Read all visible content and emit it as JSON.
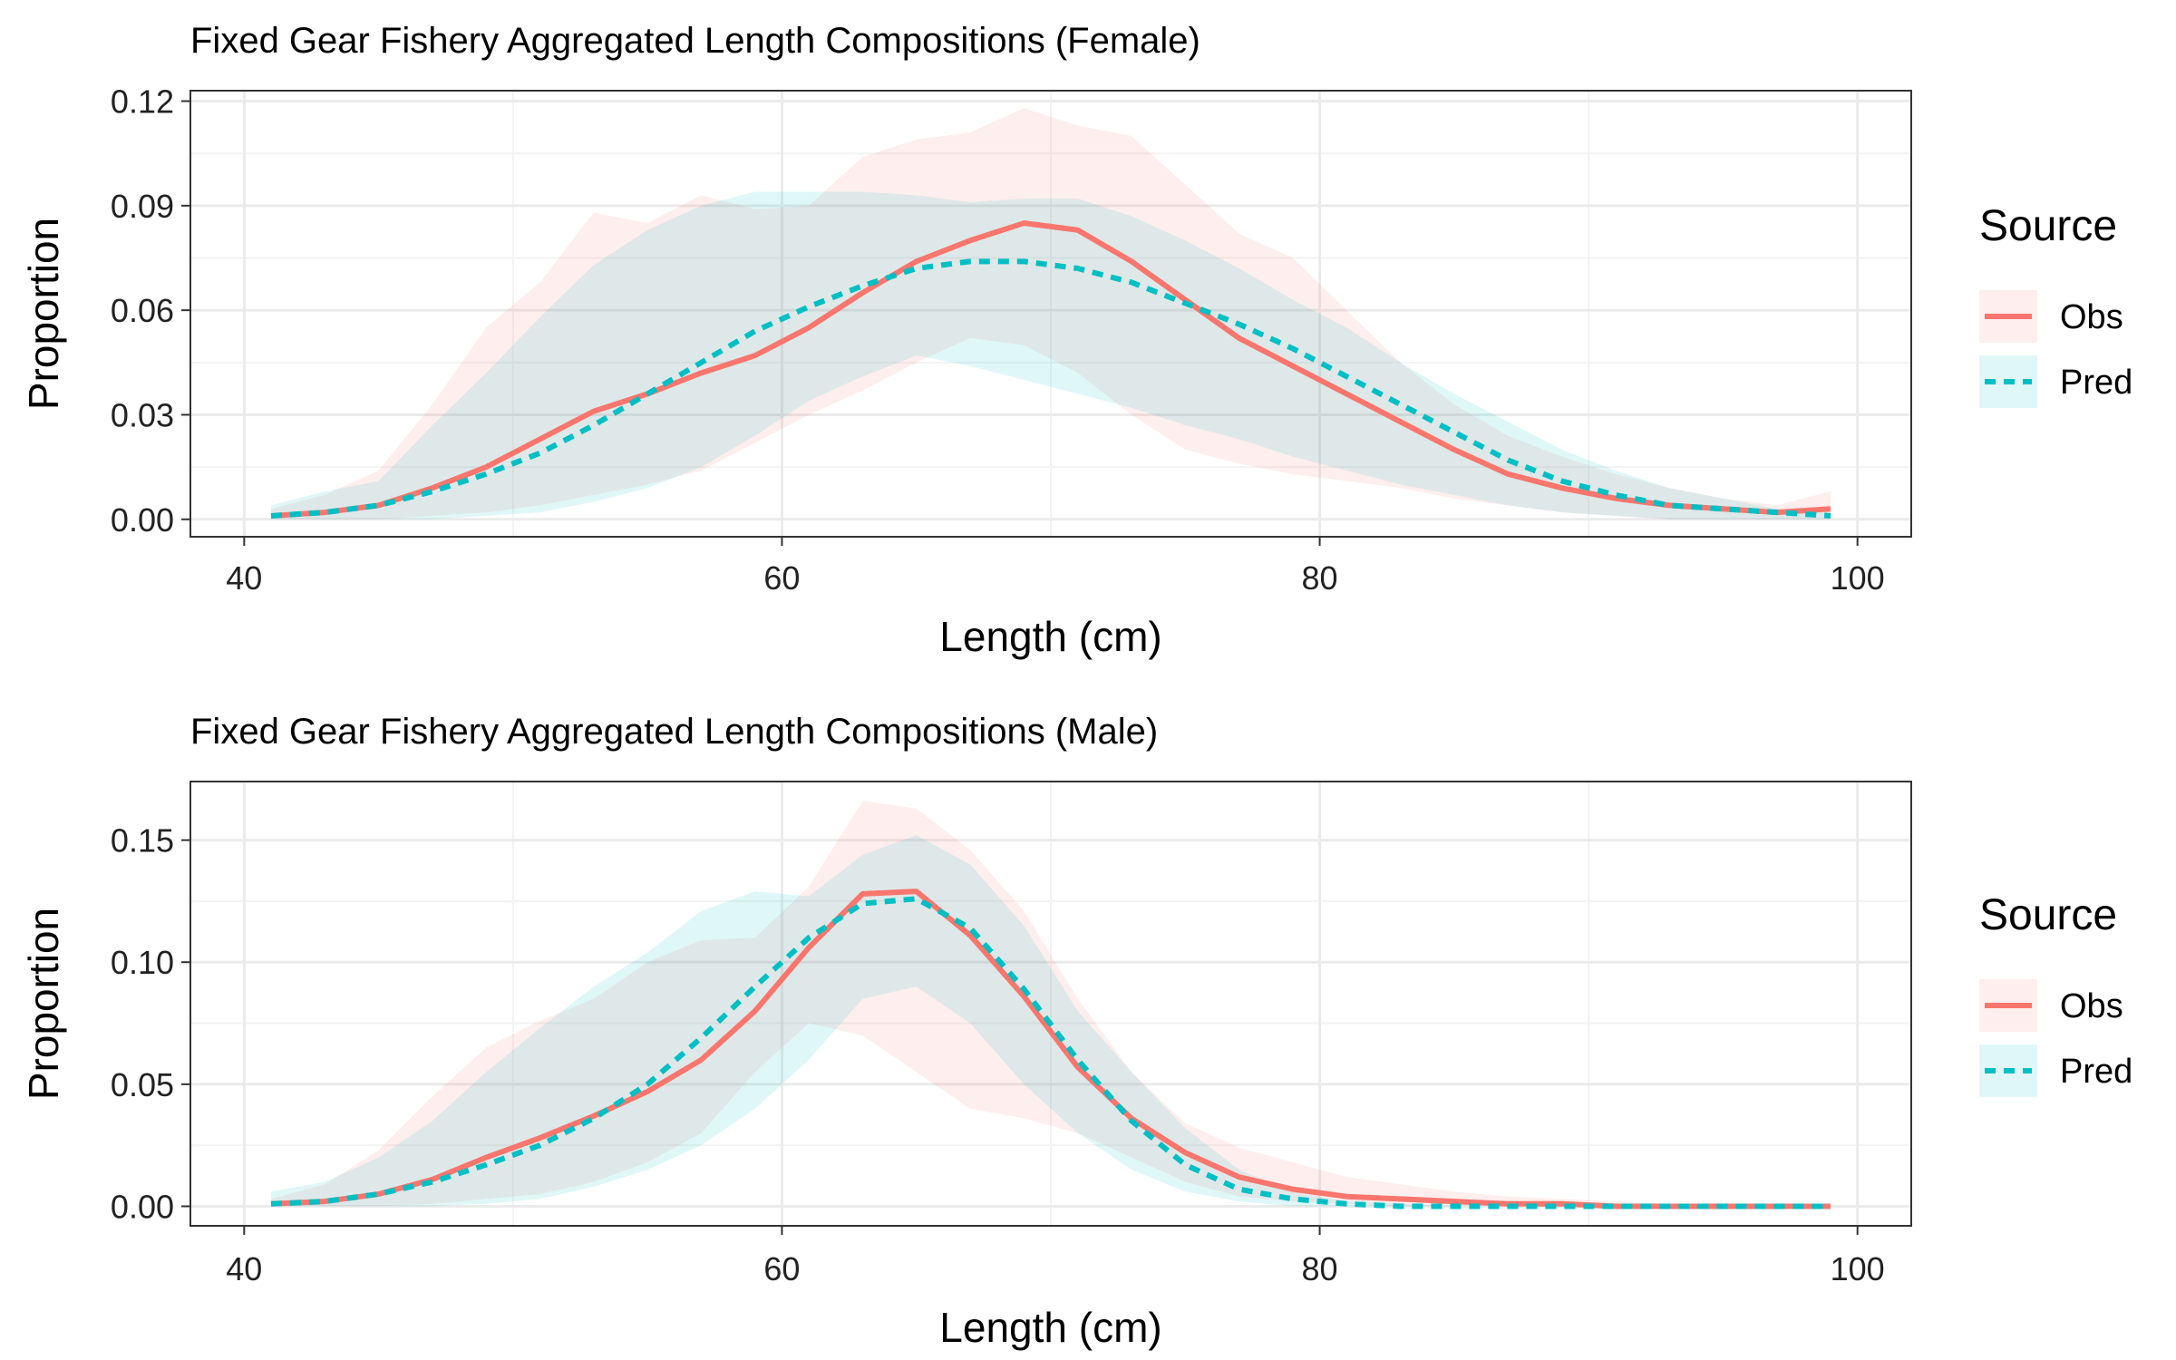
{
  "colors": {
    "obs": "#F8766D",
    "pred": "#00BFC4",
    "grid_major": "#EBEBEB",
    "grid_minor": "#F3F3F3",
    "panel_border": "#333333"
  },
  "chart_data": [
    {
      "type": "line",
      "title": "Fixed Gear Fishery Aggregated Length Compositions (Female)",
      "xlabel": "Length (cm)",
      "ylabel": "Proportion",
      "xlim": [
        38,
        102
      ],
      "ylim": [
        -0.005,
        0.123
      ],
      "xticks": [
        40,
        60,
        80,
        100
      ],
      "xtick_labels": [
        "40",
        "60",
        "80",
        "100"
      ],
      "yticks": [
        0,
        0.03,
        0.06,
        0.09,
        0.12
      ],
      "ytick_labels": [
        "0.00",
        "0.03",
        "0.06",
        "0.09",
        "0.12"
      ],
      "grid": true,
      "legend": {
        "title": "Source",
        "position": "right",
        "entries": [
          "Obs",
          "Pred"
        ]
      },
      "x": [
        41,
        43,
        45,
        47,
        49,
        51,
        53,
        55,
        57,
        59,
        61,
        63,
        65,
        67,
        69,
        71,
        73,
        75,
        77,
        79,
        81,
        83,
        85,
        87,
        89,
        91,
        93,
        95,
        97,
        99
      ],
      "series": [
        {
          "name": "Obs",
          "style": "solid",
          "values": [
            0.001,
            0.002,
            0.004,
            0.009,
            0.015,
            0.023,
            0.031,
            0.036,
            0.042,
            0.047,
            0.055,
            0.065,
            0.074,
            0.08,
            0.085,
            0.083,
            0.074,
            0.063,
            0.052,
            0.044,
            0.036,
            0.028,
            0.02,
            0.013,
            0.009,
            0.006,
            0.004,
            0.003,
            0.002,
            0.003
          ],
          "lower": [
            0.0,
            0.0,
            0.0,
            0.001,
            0.002,
            0.004,
            0.007,
            0.01,
            0.014,
            0.022,
            0.03,
            0.037,
            0.045,
            0.052,
            0.05,
            0.042,
            0.03,
            0.02,
            0.016,
            0.013,
            0.011,
            0.009,
            0.006,
            0.004,
            0.002,
            0.001,
            0.0,
            0.0,
            0.0,
            0.0
          ],
          "upper": [
            0.003,
            0.007,
            0.014,
            0.033,
            0.055,
            0.068,
            0.088,
            0.085,
            0.093,
            0.089,
            0.09,
            0.104,
            0.109,
            0.111,
            0.118,
            0.113,
            0.11,
            0.096,
            0.082,
            0.075,
            0.06,
            0.045,
            0.033,
            0.024,
            0.018,
            0.013,
            0.009,
            0.006,
            0.004,
            0.008
          ]
        },
        {
          "name": "Pred",
          "style": "dashed",
          "values": [
            0.001,
            0.002,
            0.004,
            0.008,
            0.013,
            0.019,
            0.027,
            0.036,
            0.045,
            0.054,
            0.061,
            0.067,
            0.072,
            0.074,
            0.074,
            0.072,
            0.068,
            0.062,
            0.056,
            0.049,
            0.041,
            0.033,
            0.025,
            0.017,
            0.011,
            0.007,
            0.004,
            0.003,
            0.002,
            0.001
          ],
          "lower": [
            0.0,
            0.0,
            0.0,
            0.0,
            0.001,
            0.002,
            0.005,
            0.009,
            0.015,
            0.024,
            0.034,
            0.041,
            0.047,
            0.044,
            0.04,
            0.036,
            0.032,
            0.027,
            0.023,
            0.018,
            0.014,
            0.01,
            0.007,
            0.004,
            0.002,
            0.001,
            0.0,
            0.0,
            0.0,
            0.0
          ],
          "upper": [
            0.004,
            0.008,
            0.011,
            0.027,
            0.042,
            0.058,
            0.073,
            0.083,
            0.09,
            0.094,
            0.094,
            0.094,
            0.093,
            0.091,
            0.092,
            0.092,
            0.087,
            0.08,
            0.072,
            0.063,
            0.055,
            0.045,
            0.036,
            0.028,
            0.02,
            0.014,
            0.009,
            0.006,
            0.003,
            0.002
          ]
        }
      ]
    },
    {
      "type": "line",
      "title": "Fixed Gear Fishery Aggregated Length Compositions (Male)",
      "xlabel": "Length (cm)",
      "ylabel": "Proportion",
      "xlim": [
        38,
        102
      ],
      "ylim": [
        -0.008,
        0.174
      ],
      "xticks": [
        40,
        60,
        80,
        100
      ],
      "xtick_labels": [
        "40",
        "60",
        "80",
        "100"
      ],
      "yticks": [
        0,
        0.05,
        0.1,
        0.15
      ],
      "ytick_labels": [
        "0.00",
        "0.05",
        "0.10",
        "0.15"
      ],
      "grid": true,
      "legend": {
        "title": "Source",
        "position": "right",
        "entries": [
          "Obs",
          "Pred"
        ]
      },
      "x": [
        41,
        43,
        45,
        47,
        49,
        51,
        53,
        55,
        57,
        59,
        61,
        63,
        65,
        67,
        69,
        71,
        73,
        75,
        77,
        79,
        81,
        83,
        85,
        87,
        89,
        91,
        93,
        95,
        97,
        99
      ],
      "series": [
        {
          "name": "Obs",
          "style": "solid",
          "values": [
            0.001,
            0.002,
            0.005,
            0.011,
            0.02,
            0.028,
            0.037,
            0.047,
            0.06,
            0.08,
            0.106,
            0.128,
            0.129,
            0.111,
            0.086,
            0.057,
            0.036,
            0.022,
            0.012,
            0.007,
            0.004,
            0.003,
            0.002,
            0.001,
            0.001,
            0.0,
            0.0,
            0.0,
            0.0,
            0.0
          ],
          "lower": [
            0.0,
            0.0,
            0.0,
            0.001,
            0.003,
            0.005,
            0.01,
            0.018,
            0.03,
            0.055,
            0.075,
            0.07,
            0.055,
            0.04,
            0.036,
            0.03,
            0.02,
            0.01,
            0.004,
            0.002,
            0.001,
            0.0,
            0.0,
            0.0,
            0.0,
            0.0,
            0.0,
            0.0,
            0.0,
            0.0
          ],
          "upper": [
            0.003,
            0.009,
            0.023,
            0.045,
            0.065,
            0.076,
            0.085,
            0.1,
            0.109,
            0.11,
            0.131,
            0.166,
            0.163,
            0.146,
            0.121,
            0.085,
            0.055,
            0.034,
            0.024,
            0.018,
            0.012,
            0.009,
            0.006,
            0.004,
            0.003,
            0.002,
            0.001,
            0.001,
            0.0,
            0.0
          ]
        },
        {
          "name": "Pred",
          "style": "dashed",
          "values": [
            0.001,
            0.002,
            0.005,
            0.01,
            0.017,
            0.025,
            0.036,
            0.05,
            0.069,
            0.09,
            0.11,
            0.124,
            0.126,
            0.114,
            0.089,
            0.06,
            0.035,
            0.017,
            0.007,
            0.003,
            0.001,
            0.0,
            0.0,
            0.0,
            0.0,
            0.0,
            0.0,
            0.0,
            0.0,
            0.0
          ],
          "lower": [
            0.0,
            0.0,
            0.0,
            0.0,
            0.001,
            0.003,
            0.008,
            0.015,
            0.025,
            0.04,
            0.06,
            0.085,
            0.09,
            0.075,
            0.05,
            0.03,
            0.015,
            0.006,
            0.002,
            0.0,
            0.0,
            0.0,
            0.0,
            0.0,
            0.0,
            0.0,
            0.0,
            0.0,
            0.0,
            0.0
          ],
          "upper": [
            0.006,
            0.01,
            0.02,
            0.035,
            0.055,
            0.073,
            0.09,
            0.104,
            0.121,
            0.129,
            0.127,
            0.144,
            0.152,
            0.14,
            0.115,
            0.08,
            0.055,
            0.032,
            0.015,
            0.006,
            0.002,
            0.001,
            0.0,
            0.0,
            0.0,
            0.0,
            0.0,
            0.0,
            0.0,
            0.0
          ]
        }
      ]
    }
  ]
}
